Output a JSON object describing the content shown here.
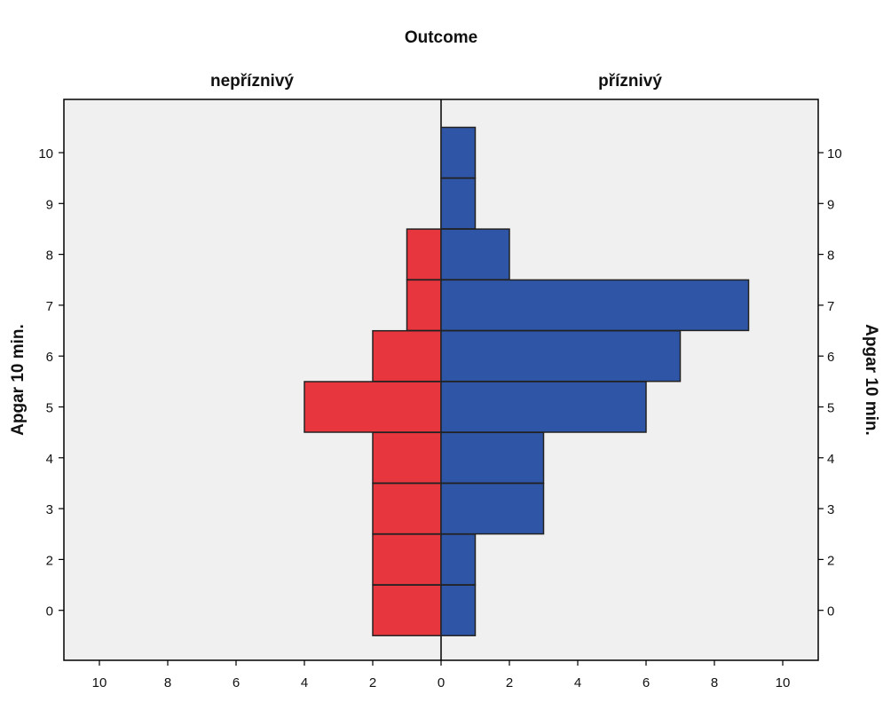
{
  "chart_data": {
    "type": "bar",
    "subtype": "population-pyramid",
    "title": "Outcome",
    "panels": [
      "nepříznivý",
      "příznivý"
    ],
    "xlabel": "",
    "ylabel": "Apgar 10 min.",
    "ylabel_right": "Apgar 10 min.",
    "categories": [
      "0",
      "2",
      "3",
      "4",
      "5",
      "6",
      "7",
      "8",
      "9",
      "10"
    ],
    "series": [
      {
        "name": "nepříznivý",
        "values": [
          2,
          2,
          2,
          2,
          4,
          2,
          1,
          1,
          0,
          0
        ],
        "color": "#e8363e"
      },
      {
        "name": "příznivý",
        "values": [
          1,
          1,
          3,
          3,
          6,
          7,
          9,
          2,
          1,
          1
        ],
        "color": "#2f56a6"
      }
    ],
    "x_ticks_left": [
      "10",
      "8",
      "6",
      "4",
      "2",
      "0"
    ],
    "x_ticks_right": [
      "2",
      "4",
      "6",
      "8",
      "10"
    ],
    "xlim": [
      0,
      10
    ],
    "plot_background": "#f0f0f0",
    "grid": false
  }
}
